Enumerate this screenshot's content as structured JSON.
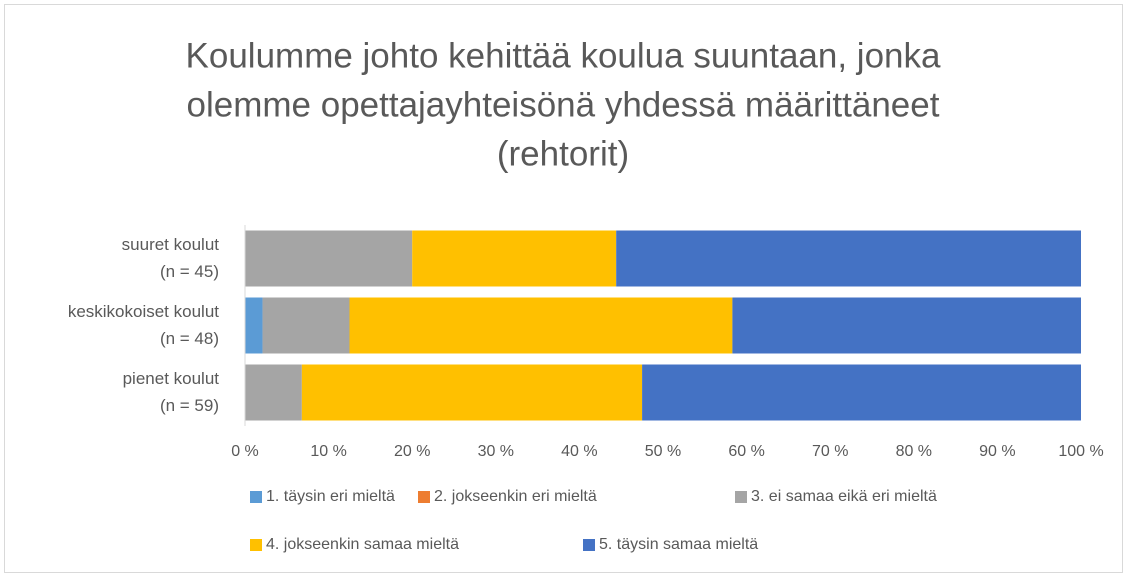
{
  "chart_data": {
    "type": "stacked-bar-horizontal",
    "title": [
      "Koulumme johto kehittää koulua suuntaan, jonka",
      "olemme opettajayhteisönä yhdessä määrittäneet",
      "(rehtorit)"
    ],
    "categories": [
      [
        "suuret koulut",
        "(n = 45)"
      ],
      [
        "keskikokoiset koulut",
        "(n = 48)"
      ],
      [
        "pienet koulut",
        "(n = 59)"
      ]
    ],
    "series": [
      {
        "name": "1. täysin eri mieltä",
        "color": "#5b9bd5",
        "values": [
          0,
          2.1,
          0
        ]
      },
      {
        "name": "2. jokseenkin eri mieltä",
        "color": "#ed7d31",
        "values": [
          0,
          0,
          0
        ]
      },
      {
        "name": "3. ei samaa eikä eri mieltä",
        "color": "#a5a5a5",
        "values": [
          20,
          10.4,
          6.8
        ]
      },
      {
        "name": "4. jokseenkin samaa mieltä",
        "color": "#ffc000",
        "values": [
          24.4,
          45.8,
          40.7
        ]
      },
      {
        "name": "5. täysin samaa mieltä",
        "color": "#4472c4",
        "values": [
          55.6,
          41.7,
          52.5
        ]
      }
    ],
    "xlim": [
      0,
      100
    ],
    "xticks": [
      {
        "value": 0,
        "label": "0 %"
      },
      {
        "value": 10,
        "label": "10 %"
      },
      {
        "value": 20,
        "label": "20 %"
      },
      {
        "value": 30,
        "label": "30 %"
      },
      {
        "value": 40,
        "label": "40 %"
      },
      {
        "value": 50,
        "label": "50 %"
      },
      {
        "value": 60,
        "label": "60 %"
      },
      {
        "value": 70,
        "label": "70 %"
      },
      {
        "value": 80,
        "label": "80 %"
      },
      {
        "value": 90,
        "label": "90 %"
      },
      {
        "value": 100,
        "label": "100 %"
      }
    ],
    "legend": "bottom"
  }
}
